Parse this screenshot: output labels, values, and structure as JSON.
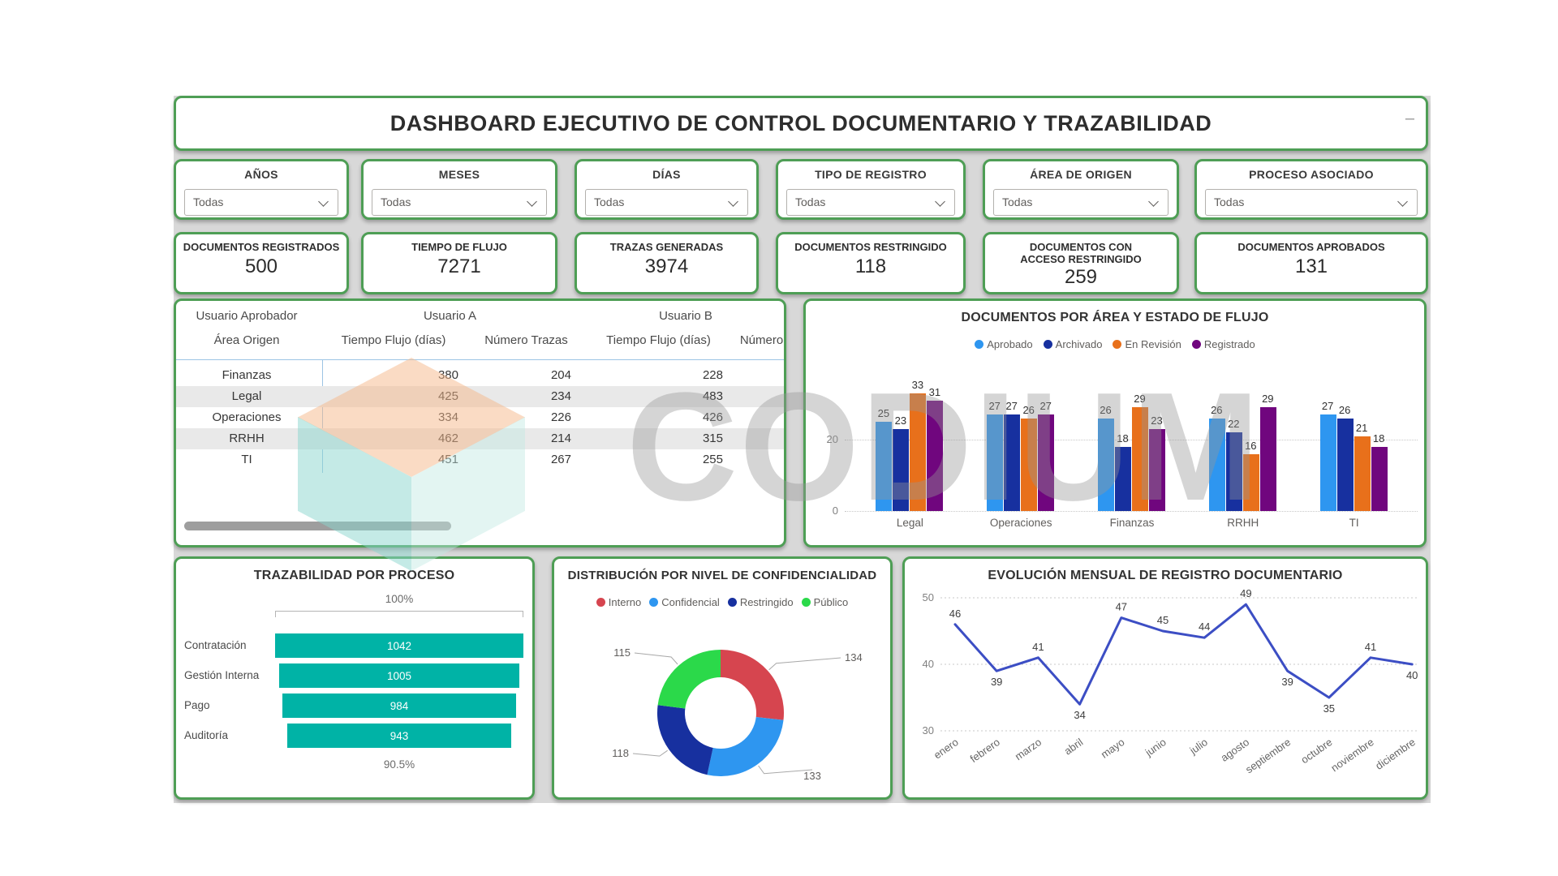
{
  "header": {
    "title": "DASHBOARD EJECUTIVO DE CONTROL DOCUMENTARIO Y TRAZABILIDAD",
    "collapse_glyph": "–"
  },
  "filters": [
    {
      "label": "AÑOS",
      "value": "Todas"
    },
    {
      "label": "MESES",
      "value": "Todas"
    },
    {
      "label": "DÍAS",
      "value": "Todas"
    },
    {
      "label": "TIPO DE REGISTRO",
      "value": "Todas"
    },
    {
      "label": "ÁREA DE ORIGEN",
      "value": "Todas"
    },
    {
      "label": "PROCESO ASOCIADO",
      "value": "Todas"
    }
  ],
  "kpis": [
    {
      "label": "DOCUMENTOS REGISTRADOS",
      "value": "500"
    },
    {
      "label": "TIEMPO DE FLUJO",
      "value": "7271"
    },
    {
      "label": "TRAZAS GENERADAS",
      "value": "3974"
    },
    {
      "label": "DOCUMENTOS RESTRINGIDO",
      "value": "118"
    },
    {
      "label": "DOCUMENTOS CON ACCESO RESTRINGIDO",
      "value": "259"
    },
    {
      "label": "DOCUMENTOS APROBADOS",
      "value": "131"
    }
  ],
  "matrix": {
    "row_group_header": "Usuario Aprobador",
    "row_subheader": "Área Origen",
    "col_groups": [
      "Usuario A",
      "Usuario B"
    ],
    "measure_headers": [
      "Tiempo Flujo (días)",
      "Número Trazas",
      "Tiempo Flujo (días)",
      "Número"
    ],
    "rows": [
      [
        "Finanzas",
        "380",
        "204",
        "228",
        ""
      ],
      [
        "Legal",
        "425",
        "234",
        "483",
        ""
      ],
      [
        "Operaciones",
        "334",
        "226",
        "426",
        ""
      ],
      [
        "RRHH",
        "462",
        "214",
        "315",
        ""
      ],
      [
        "TI",
        "451",
        "267",
        "255",
        ""
      ]
    ]
  },
  "chart_data": [
    {
      "id": "documentos_por_area",
      "type": "bar",
      "title": "DOCUMENTOS POR ÁREA Y ESTADO DE FLUJO",
      "categories": [
        "Legal",
        "Operaciones",
        "Finanzas",
        "RRHH",
        "TI"
      ],
      "series": [
        {
          "name": "Aprobado",
          "color": "#2E96F0",
          "values": [
            25,
            27,
            26,
            26,
            27
          ]
        },
        {
          "name": "Archivado",
          "color": "#17309F",
          "values": [
            23,
            27,
            18,
            22,
            26
          ]
        },
        {
          "name": "En Revisión",
          "color": "#E8701B",
          "values": [
            33,
            26,
            29,
            16,
            21
          ]
        },
        {
          "name": "Registrado",
          "color": "#70067E",
          "values": [
            31,
            27,
            23,
            29,
            18
          ]
        }
      ],
      "yticks": [
        0,
        20
      ],
      "ylim": [
        0,
        34
      ],
      "legend_position": "top",
      "grid": "dotted"
    },
    {
      "id": "trazabilidad_por_proceso",
      "type": "funnel",
      "title": "TRAZABILIDAD POR PROCESO",
      "categories": [
        "Contratación",
        "Gestión Interna",
        "Pago",
        "Auditoría"
      ],
      "values": [
        1042,
        1005,
        984,
        943
      ],
      "top_label": "100%",
      "bottom_label": "90.5%",
      "bar_color": "#00B3A6"
    },
    {
      "id": "distribucion_confidencialidad",
      "type": "donut",
      "title": "DISTRIBUCIÓN POR NIVEL DE CONFIDENCIALIDAD",
      "labels": [
        "Interno",
        "Confidencial",
        "Restringido",
        "Público"
      ],
      "values": [
        134,
        133,
        118,
        115
      ],
      "colors": [
        "#D6454F",
        "#2E96F0",
        "#17309F",
        "#2BD94A"
      ],
      "legend_position": "top"
    },
    {
      "id": "evolucion_mensual",
      "type": "line",
      "title": "EVOLUCIÓN MENSUAL DE REGISTRO DOCUMENTARIO",
      "x": [
        "enero",
        "febrero",
        "marzo",
        "abril",
        "mayo",
        "junio",
        "julio",
        "agosto",
        "septiembre",
        "octubre",
        "noviembre",
        "diciembre"
      ],
      "values": [
        46,
        39,
        41,
        34,
        47,
        45,
        44,
        49,
        39,
        35,
        41,
        40
      ],
      "label_pos": [
        "above",
        "below",
        "above",
        "below",
        "above",
        "above",
        "above",
        "above",
        "below",
        "below",
        "above",
        "below"
      ],
      "yticks": [
        30,
        40,
        50
      ],
      "ylim": [
        28,
        52
      ],
      "line_color": "#3C4EC4",
      "grid": "dotted"
    }
  ],
  "watermark": {
    "text": "CODIUM"
  }
}
